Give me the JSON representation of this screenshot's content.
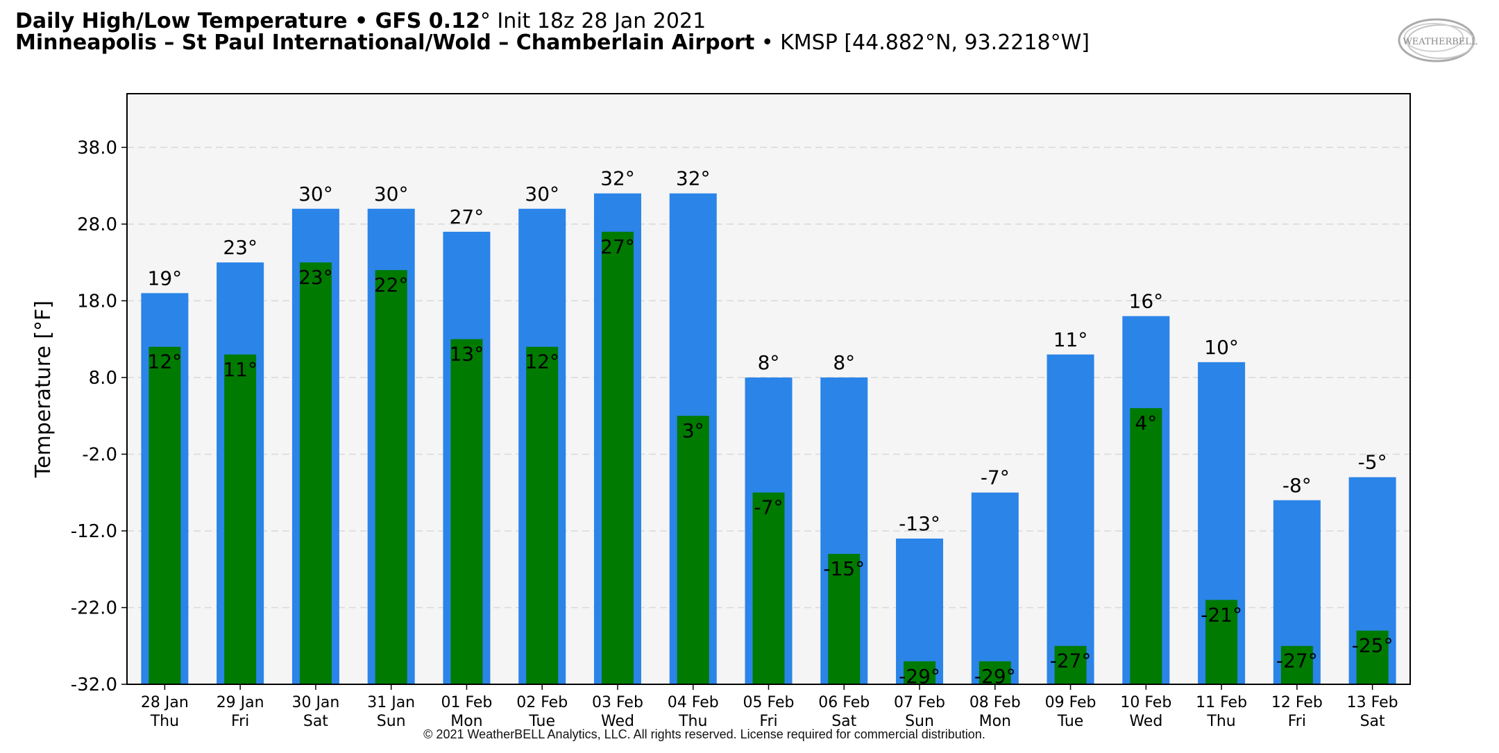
{
  "header": {
    "title_bold": "Daily High/Low Temperature • GFS 0.12",
    "title_deg": "°",
    "title_init": " Init 18z 28 Jan 2021",
    "station_bold": "Minneapolis – St Paul International/Wold – Chamberlain Airport",
    "station_rest": " • KMSP [44.882°N, 93.2218°W]"
  },
  "logo": {
    "text": "WEATHERBELL"
  },
  "copyright": "© 2021 WeatherBELL Analytics, LLC. All rights reserved. License required for commercial distribution.",
  "colors": {
    "high": "#2b84e8",
    "low": "#007a00",
    "plot_bg": "#f5f5f5",
    "grid": "#d8d8d8"
  },
  "chart_data": {
    "type": "bar",
    "ylabel": "Temperature [°F]",
    "ylim": [
      -32,
      45
    ],
    "yticks": [
      "38.0",
      "28.0",
      "18.0",
      "8.0",
      "-2.0",
      "-12.0",
      "-22.0",
      "-32.0"
    ],
    "ytick_values": [
      38,
      28,
      18,
      8,
      -2,
      -12,
      -22,
      -32
    ],
    "grid": true,
    "categories": [
      [
        "28 Jan",
        "Thu"
      ],
      [
        "29 Jan",
        "Fri"
      ],
      [
        "30 Jan",
        "Sat"
      ],
      [
        "31 Jan",
        "Sun"
      ],
      [
        "01 Feb",
        "Mon"
      ],
      [
        "02 Feb",
        "Tue"
      ],
      [
        "03 Feb",
        "Wed"
      ],
      [
        "04 Feb",
        "Thu"
      ],
      [
        "05 Feb",
        "Fri"
      ],
      [
        "06 Feb",
        "Sat"
      ],
      [
        "07 Feb",
        "Sun"
      ],
      [
        "08 Feb",
        "Mon"
      ],
      [
        "09 Feb",
        "Tue"
      ],
      [
        "10 Feb",
        "Wed"
      ],
      [
        "11 Feb",
        "Thu"
      ],
      [
        "12 Feb",
        "Fri"
      ],
      [
        "13 Feb",
        "Sat"
      ]
    ],
    "series": [
      {
        "name": "High",
        "values": [
          19,
          23,
          30,
          30,
          27,
          30,
          32,
          32,
          8,
          8,
          -13,
          -7,
          11,
          16,
          10,
          -8,
          -5
        ],
        "labels": [
          "19°",
          "23°",
          "30°",
          "30°",
          "27°",
          "30°",
          "32°",
          "32°",
          "8°",
          "8°",
          "-13°",
          "-7°",
          "11°",
          "16°",
          "10°",
          "-8°",
          "-5°"
        ]
      },
      {
        "name": "Low",
        "values": [
          12,
          11,
          23,
          22,
          13,
          12,
          27,
          3,
          -7,
          -15,
          -29,
          -29,
          -27,
          4,
          -21,
          -27,
          -25
        ],
        "labels": [
          "12°",
          "11°",
          "23°",
          "22°",
          "13°",
          "12°",
          "27°",
          "3°",
          "-7°",
          "-15°",
          "-29°",
          "-29°",
          "-27°",
          "4°",
          "-21°",
          "-27°",
          "-25°"
        ]
      }
    ]
  }
}
